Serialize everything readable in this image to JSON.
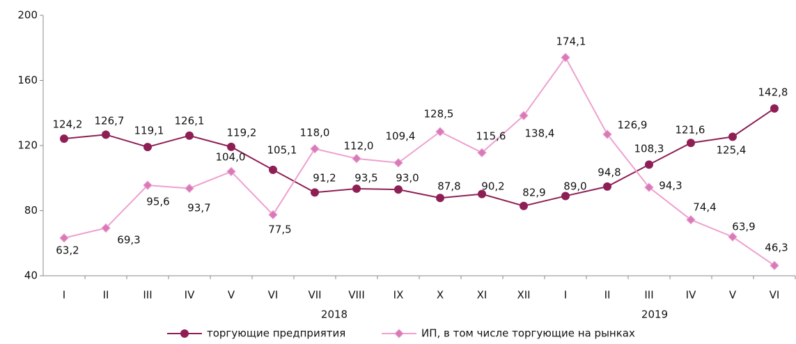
{
  "chart_data": {
    "type": "line",
    "categories": [
      "I",
      "II",
      "III",
      "IV",
      "V",
      "VI",
      "VII",
      "VIII",
      "IX",
      "X",
      "XI",
      "XII",
      "I",
      "II",
      "III",
      "IV",
      "V",
      "VI"
    ],
    "year_labels": [
      "2018",
      "2019"
    ],
    "ylim": [
      40,
      200
    ],
    "yticks": [
      40,
      80,
      120,
      160,
      200
    ],
    "grid": false,
    "legend": "bottom",
    "series": [
      {
        "name": "торгующие предприятия",
        "color": "#8e1f55",
        "marker": "circle",
        "values": [
          124.2,
          126.7,
          119.1,
          126.1,
          119.2,
          105.1,
          91.2,
          93.5,
          93.0,
          87.8,
          90.2,
          82.9,
          89.0,
          94.8,
          108.3,
          121.6,
          125.4,
          142.8
        ],
        "value_labels": [
          "124,2",
          "126,7",
          "119,1",
          "126,1",
          "119,2",
          "105,1",
          "91,2",
          "93,5",
          "93,0",
          "87,8",
          "90,2",
          "82,9",
          "89,0",
          "94,8",
          "108,3",
          "121,6",
          "125,4",
          "142,8"
        ]
      },
      {
        "name": "ИП, в том числе торгующие на рынках",
        "color": "#eea0cf",
        "marker": "diamond",
        "values": [
          63.2,
          69.3,
          95.6,
          93.7,
          104.0,
          77.5,
          118.0,
          112.0,
          109.4,
          128.5,
          115.6,
          138.4,
          174.1,
          126.9,
          94.3,
          74.4,
          63.9,
          46.3
        ],
        "value_labels": [
          "63,2",
          "69,3",
          "95,6",
          "93,7",
          "104,0",
          "77,5",
          "118,0",
          "112,0",
          "109,4",
          "128,5",
          "115,6",
          "138,4",
          "174,1",
          "126,9",
          "94,3",
          "74,4",
          "63,9",
          "46,3"
        ]
      }
    ]
  }
}
